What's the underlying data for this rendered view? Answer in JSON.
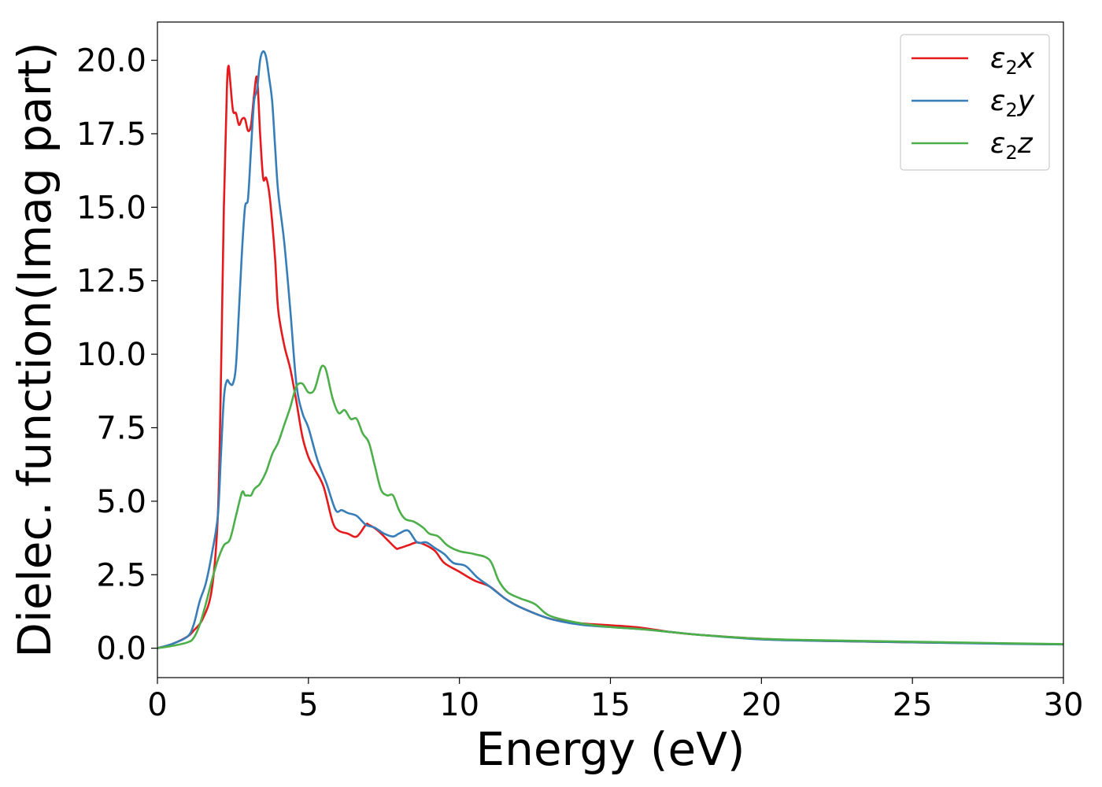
{
  "chart_data": {
    "type": "line",
    "xlabel": "Energy (eV)",
    "ylabel": "Dielec. function(Imag part)",
    "xlim": [
      0,
      30
    ],
    "ylim": [
      -1.0,
      21.3
    ],
    "xticks": [
      0,
      5,
      10,
      15,
      20,
      25,
      30
    ],
    "xtick_labels": [
      "0",
      "5",
      "10",
      "15",
      "20",
      "25",
      "30"
    ],
    "yticks": [
      0.0,
      2.5,
      5.0,
      7.5,
      10.0,
      12.5,
      15.0,
      17.5,
      20.0
    ],
    "ytick_labels": [
      "0.0",
      "2.5",
      "5.0",
      "7.5",
      "10.0",
      "12.5",
      "15.0",
      "17.5",
      "20.0"
    ],
    "grid": false,
    "legend_position": "top-right",
    "series": [
      {
        "name": "ε2x",
        "legend_base": "ε",
        "legend_sub": "2",
        "legend_suffix": "x",
        "color": "#e41a1c",
        "x": [
          0,
          0.5,
          1.0,
          1.2,
          1.5,
          1.8,
          2.0,
          2.1,
          2.2,
          2.3,
          2.35,
          2.4,
          2.5,
          2.6,
          2.7,
          2.8,
          2.9,
          3.0,
          3.1,
          3.2,
          3.3,
          3.4,
          3.5,
          3.6,
          3.7,
          3.8,
          3.9,
          4.0,
          4.2,
          4.4,
          4.6,
          4.8,
          5.0,
          5.2,
          5.5,
          5.8,
          6.0,
          6.3,
          6.6,
          6.9,
          7.0,
          7.3,
          7.6,
          7.9,
          8.0,
          8.3,
          8.6,
          8.9,
          9.2,
          9.5,
          10.0,
          10.5,
          11.0,
          11.5,
          12.0,
          13.0,
          14.0,
          15.0,
          16.0,
          17.0,
          18.0,
          20.0,
          22.0,
          25.0,
          28.0,
          30.0
        ],
        "y": [
          0,
          0.15,
          0.4,
          0.6,
          1.0,
          2.0,
          4.5,
          9.0,
          15.0,
          19.0,
          19.8,
          19.4,
          18.3,
          18.2,
          17.8,
          18.0,
          18.0,
          17.6,
          17.8,
          18.8,
          19.4,
          17.5,
          16.0,
          16.0,
          15.5,
          14.5,
          13.2,
          11.5,
          10.3,
          9.5,
          8.4,
          7.2,
          6.5,
          6.1,
          5.5,
          4.3,
          4.0,
          3.9,
          3.8,
          4.2,
          4.2,
          4.0,
          3.7,
          3.4,
          3.4,
          3.5,
          3.6,
          3.5,
          3.3,
          2.9,
          2.6,
          2.3,
          2.1,
          1.7,
          1.4,
          1.0,
          0.85,
          0.78,
          0.7,
          0.55,
          0.45,
          0.32,
          0.25,
          0.2,
          0.16,
          0.13
        ]
      },
      {
        "name": "ε2y",
        "legend_base": "ε",
        "legend_sub": "2",
        "legend_suffix": "y",
        "color": "#377eb8",
        "x": [
          0,
          0.5,
          1.0,
          1.2,
          1.4,
          1.6,
          1.8,
          2.0,
          2.1,
          2.2,
          2.3,
          2.4,
          2.5,
          2.6,
          2.7,
          2.8,
          2.9,
          3.0,
          3.1,
          3.2,
          3.3,
          3.4,
          3.5,
          3.6,
          3.7,
          3.8,
          3.9,
          4.0,
          4.2,
          4.4,
          4.6,
          4.8,
          5.0,
          5.3,
          5.6,
          5.9,
          6.1,
          6.3,
          6.6,
          6.9,
          7.2,
          7.5,
          7.8,
          8.0,
          8.3,
          8.6,
          8.9,
          9.2,
          9.5,
          9.8,
          10.2,
          10.6,
          11.0,
          11.5,
          12.0,
          13.0,
          14.0,
          15.0,
          16.0,
          17.0,
          18.0,
          20.0,
          22.0,
          25.0,
          28.0,
          30.0
        ],
        "y": [
          0,
          0.15,
          0.4,
          0.8,
          1.6,
          2.2,
          3.2,
          4.5,
          6.5,
          8.5,
          9.1,
          9.0,
          9.0,
          9.6,
          11.5,
          13.5,
          15.0,
          15.3,
          17.0,
          18.6,
          19.0,
          20.0,
          20.3,
          20.1,
          19.4,
          18.6,
          17.0,
          15.5,
          13.8,
          11.5,
          9.0,
          8.0,
          7.5,
          6.4,
          5.6,
          4.7,
          4.7,
          4.6,
          4.5,
          4.2,
          4.1,
          3.9,
          3.8,
          3.9,
          4.0,
          3.6,
          3.6,
          3.4,
          3.2,
          2.9,
          2.8,
          2.4,
          2.1,
          1.7,
          1.4,
          1.0,
          0.8,
          0.72,
          0.65,
          0.55,
          0.45,
          0.3,
          0.25,
          0.2,
          0.15,
          0.13
        ]
      },
      {
        "name": "ε2z",
        "legend_base": "ε",
        "legend_sub": "2",
        "legend_suffix": "z",
        "color": "#4daf4a",
        "x": [
          0,
          0.5,
          1.0,
          1.2,
          1.4,
          1.6,
          1.8,
          2.0,
          2.2,
          2.4,
          2.6,
          2.8,
          2.9,
          3.0,
          3.1,
          3.2,
          3.3,
          3.4,
          3.6,
          3.8,
          4.0,
          4.2,
          4.4,
          4.6,
          4.8,
          5.0,
          5.2,
          5.4,
          5.5,
          5.6,
          5.8,
          6.0,
          6.2,
          6.4,
          6.6,
          6.8,
          7.0,
          7.2,
          7.4,
          7.6,
          7.8,
          8.0,
          8.2,
          8.5,
          8.8,
          9.0,
          9.3,
          9.6,
          10.0,
          10.5,
          11.0,
          11.3,
          11.6,
          12.0,
          12.5,
          13.0,
          14.0,
          15.0,
          16.0,
          17.0,
          18.0,
          20.0,
          22.0,
          25.0,
          28.0,
          30.0
        ],
        "y": [
          0,
          0.08,
          0.2,
          0.35,
          0.8,
          1.5,
          2.3,
          3.0,
          3.5,
          3.7,
          4.5,
          5.3,
          5.2,
          5.2,
          5.2,
          5.4,
          5.5,
          5.6,
          6.0,
          6.6,
          7.0,
          7.6,
          8.2,
          8.9,
          9.0,
          8.7,
          8.8,
          9.5,
          9.6,
          9.4,
          8.5,
          8.0,
          8.1,
          7.8,
          7.8,
          7.3,
          7.0,
          6.2,
          5.4,
          5.2,
          5.2,
          4.7,
          4.4,
          4.3,
          4.1,
          3.9,
          3.8,
          3.5,
          3.3,
          3.2,
          3.0,
          2.3,
          1.9,
          1.7,
          1.5,
          1.1,
          0.85,
          0.72,
          0.65,
          0.55,
          0.45,
          0.32,
          0.27,
          0.22,
          0.17,
          0.14
        ]
      }
    ]
  }
}
